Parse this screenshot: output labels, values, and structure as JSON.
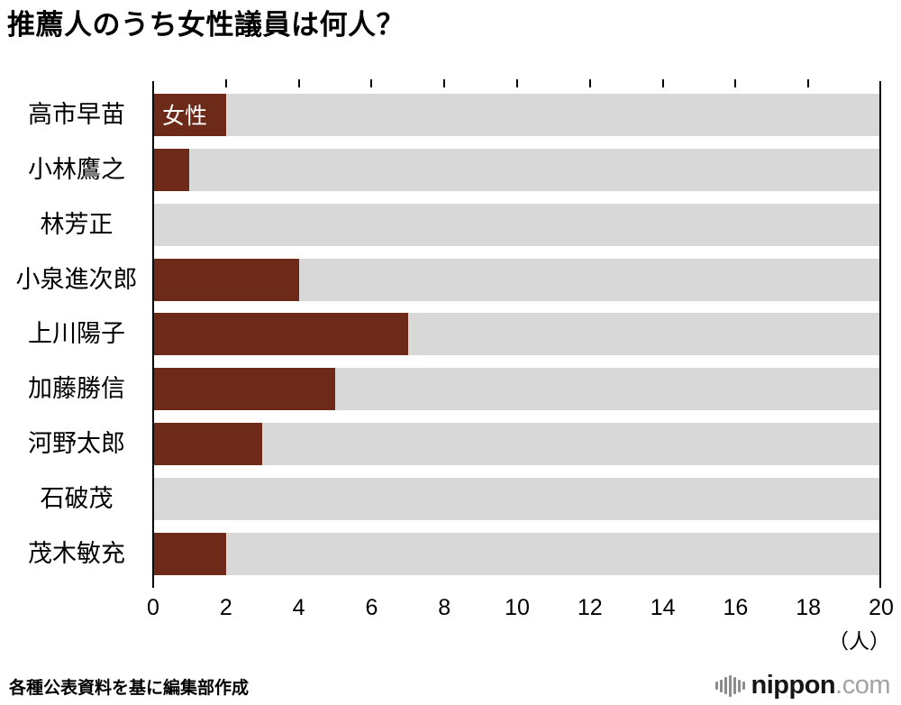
{
  "title": "推薦人のうち女性議員は何人？",
  "chart_data": {
    "type": "bar",
    "orientation": "horizontal",
    "title": "推薦人のうち女性議員は何人？",
    "categories": [
      "高市早苗",
      "小林鷹之",
      "林芳正",
      "小泉進次郎",
      "上川陽子",
      "加藤勝信",
      "河野太郎",
      "石破茂",
      "茂木敏充"
    ],
    "values": [
      2,
      1,
      0,
      4,
      7,
      5,
      3,
      0,
      2
    ],
    "series_label": "女性",
    "series_label_row_index": 0,
    "xlim": [
      0,
      20
    ],
    "xticks": [
      0,
      2,
      4,
      6,
      8,
      10,
      12,
      14,
      16,
      18,
      20
    ],
    "x_unit": "（人）",
    "bar_color": "#6d2a18",
    "track_color": "#d8d8d8",
    "axis_color": "#000000",
    "grid": false,
    "legend": "none"
  },
  "footer": {
    "source": "各種公表資料を基に編集部作成",
    "logo": {
      "name": "nippon",
      "tld": ".com"
    }
  }
}
